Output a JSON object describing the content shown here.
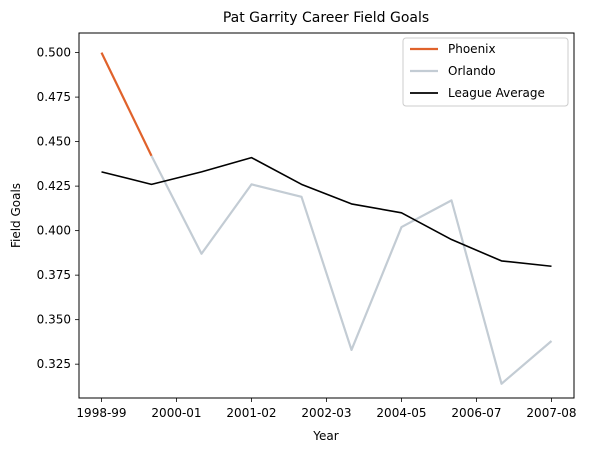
{
  "chart_data": {
    "type": "line",
    "title": "Pat Garrity Career Field Goals",
    "xlabel": "Year",
    "ylabel": "Field Goals",
    "x_tick_labels": [
      "1998-99",
      "2000-01",
      "2001-02",
      "2002-03",
      "2004-05",
      "2006-07",
      "2007-08"
    ],
    "x_tick_positions": [
      0,
      1.5,
      3,
      4.5,
      6,
      7.5,
      9
    ],
    "xlim": [
      -0.45,
      9.45
    ],
    "ylim": [
      0.306,
      0.511
    ],
    "y_ticks": [
      0.325,
      0.35,
      0.375,
      0.4,
      0.425,
      0.45,
      0.475,
      0.5
    ],
    "y_tick_labels": [
      "0.325",
      "0.350",
      "0.375",
      "0.400",
      "0.425",
      "0.450",
      "0.475",
      "0.500"
    ],
    "grid": false,
    "legend_position": "top-right",
    "series": [
      {
        "name": "Phoenix",
        "color": "#e0622b",
        "x": [
          0,
          1
        ],
        "y": [
          0.5,
          0.442
        ]
      },
      {
        "name": "Orlando",
        "color": "#c3ccd4",
        "x": [
          1,
          2,
          3,
          4,
          5,
          6,
          7,
          8,
          9
        ],
        "y": [
          0.442,
          0.387,
          0.426,
          0.419,
          0.333,
          0.402,
          0.417,
          0.314,
          0.338
        ]
      },
      {
        "name": "League Average",
        "color": "#000000",
        "x": [
          0,
          1,
          2,
          3,
          4,
          5,
          6,
          7,
          8,
          9
        ],
        "y": [
          0.433,
          0.426,
          0.433,
          0.441,
          0.426,
          0.415,
          0.41,
          0.395,
          0.383,
          0.38
        ]
      }
    ]
  }
}
